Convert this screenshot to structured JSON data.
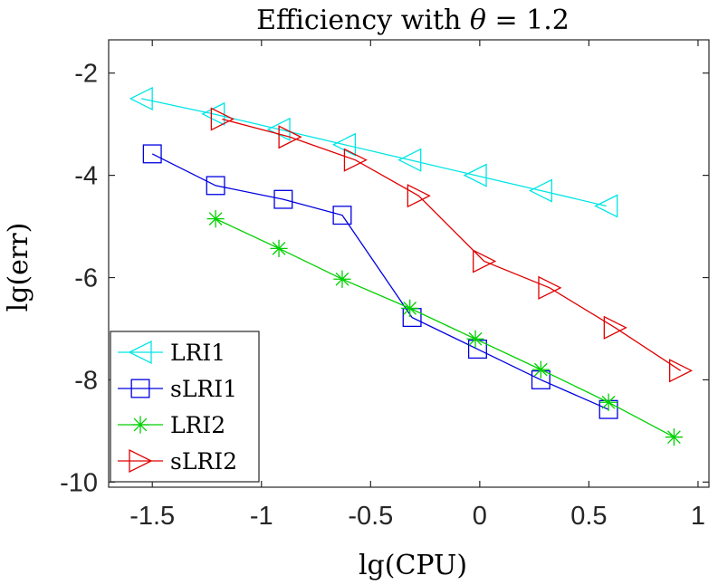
{
  "chart_data": {
    "type": "line",
    "title": "Efficiency with θ = 1.2",
    "xlabel": "lg(CPU)",
    "ylabel": "lg(err)",
    "xlim": [
      -1.7,
      1.05
    ],
    "ylim": [
      -10.1,
      -1.35
    ],
    "xticks": [
      -1.5,
      -1,
      -0.5,
      0,
      0.5,
      1
    ],
    "xtick_labels": [
      "-1.5",
      "-1",
      "-0.5",
      "0",
      "0.5",
      "1"
    ],
    "yticks": [
      -10,
      -8,
      -6,
      -4,
      -2
    ],
    "ytick_labels": [
      "-10",
      "-8",
      "-6",
      "-4",
      "-2"
    ],
    "grid": false,
    "legend_position": "bottom-left",
    "series": [
      {
        "name": "LRI1",
        "color": "#00e5e5",
        "marker": "triangle-left",
        "x": [
          -1.55,
          -1.22,
          -0.92,
          -0.62,
          -0.32,
          -0.02,
          0.28,
          0.58
        ],
        "y": [
          -2.5,
          -2.8,
          -3.1,
          -3.4,
          -3.7,
          -4.0,
          -4.3,
          -4.6
        ]
      },
      {
        "name": "sLRI1",
        "color": "#0000e0",
        "marker": "square",
        "x": [
          -1.5,
          -1.21,
          -0.9,
          -0.63,
          -0.31,
          -0.01,
          0.28,
          0.59
        ],
        "y": [
          -3.58,
          -4.2,
          -4.47,
          -4.78,
          -6.78,
          -7.4,
          -8.0,
          -8.58
        ]
      },
      {
        "name": "LRI2",
        "color": "#00d000",
        "marker": "asterisk",
        "x": [
          -1.21,
          -0.92,
          -0.63,
          -0.32,
          -0.02,
          0.28,
          0.59,
          0.89
        ],
        "y": [
          -4.85,
          -5.43,
          -6.03,
          -6.6,
          -7.2,
          -7.8,
          -8.44,
          -9.12
        ]
      },
      {
        "name": "sLRI2",
        "color": "#e00000",
        "marker": "triangle-right",
        "x": [
          -1.18,
          -0.87,
          -0.57,
          -0.28,
          0.02,
          0.32,
          0.62,
          0.92
        ],
        "y": [
          -2.9,
          -3.25,
          -3.7,
          -4.4,
          -5.68,
          -6.2,
          -6.98,
          -7.82
        ]
      }
    ]
  }
}
